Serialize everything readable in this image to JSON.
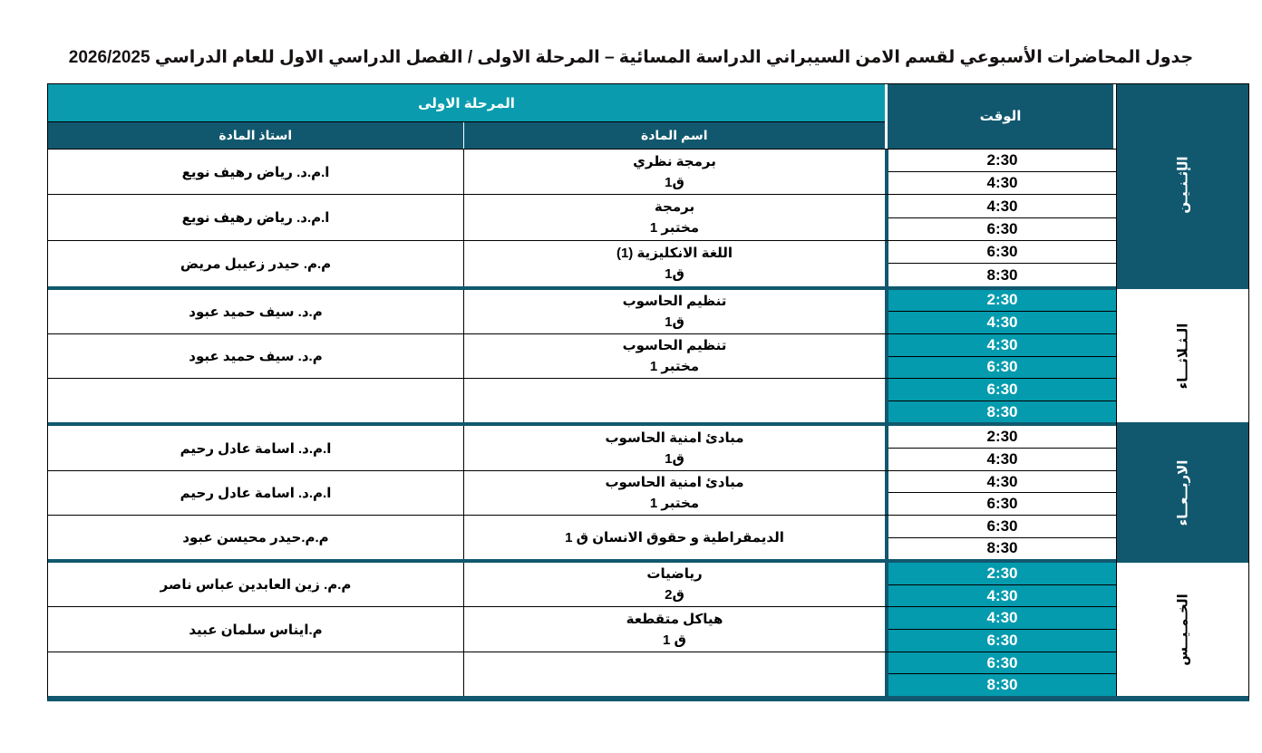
{
  "title": "جدول المحاضرات الأسبوعي لقسم الامن السيبراني الدراسة المسائية – المرحلة الاولى /  الفصل الدراسي الاول  للعام الدراسي 2026/2025",
  "header": {
    "stage_label": "المرحلة الاولى",
    "professor_col": "استاذ المادة",
    "subject_col": "اسم المادة",
    "time_col": "الوقت"
  },
  "days": [
    {
      "name": "الإثـنـيـن",
      "rows": [
        {
          "professor": "ا.م.د. رياض رهيف نويع",
          "subject_line1": "برمجة نظري",
          "subject_line2": "ق1",
          "times": [
            "2:30",
            "4:30"
          ]
        },
        {
          "professor": "ا.م.د. رياض رهيف نويع",
          "subject_line1": "برمجة",
          "subject_line2": "مختبر 1",
          "times": [
            "4:30",
            "6:30"
          ]
        },
        {
          "professor": "م.م. حيدر زعيبل مريض",
          "subject_line1": "اللغة الانكليزية (1)",
          "subject_line2": "ق1",
          "times": [
            "6:30",
            "8:30"
          ]
        }
      ]
    },
    {
      "name": "الـثـلاثـــاء",
      "rows": [
        {
          "professor": "م.د. سيف حميد عبود",
          "subject_line1": "تنظيم الحاسوب",
          "subject_line2": "ق1",
          "times": [
            "2:30",
            "4:30"
          ]
        },
        {
          "professor": "م.د. سيف حميد عبود",
          "subject_line1": "تنظيم الحاسوب",
          "subject_line2": "مختبر 1",
          "times": [
            "4:30",
            "6:30"
          ]
        },
        {
          "professor": "",
          "subject_line1": "",
          "subject_line2": "",
          "times": [
            "6:30",
            "8:30"
          ]
        }
      ]
    },
    {
      "name": "الاربــعــاء",
      "rows": [
        {
          "professor": "ا.م.د. اسامة عادل رحيم",
          "subject_line1": "مبادئ امنية الحاسوب",
          "subject_line2": "ق1",
          "times": [
            "2:30",
            "4:30"
          ]
        },
        {
          "professor": "ا.م.د. اسامة عادل رحيم",
          "subject_line1": "مبادئ امنية الحاسوب",
          "subject_line2": "مختبر 1",
          "times": [
            "4:30",
            "6:30"
          ]
        },
        {
          "professor": "م.م.حيدر محيسن عبود",
          "subject_line1": "الديمقراطية و حقوق الانسان ق 1",
          "subject_line2": "",
          "times": [
            "6:30",
            "8:30"
          ]
        }
      ]
    },
    {
      "name": "الخـمـيــس",
      "rows": [
        {
          "professor": "م.م. زين العابدين عباس ناصر",
          "subject_line1": "رياضيات",
          "subject_line2": "ق2",
          "times": [
            "2:30",
            "4:30"
          ]
        },
        {
          "professor": "م.ايناس سلمان عبيد",
          "subject_line1": "هياكل متقطعة",
          "subject_line2": "ق 1",
          "times": [
            "4:30",
            "6:30"
          ]
        },
        {
          "professor": "",
          "subject_line1": "",
          "subject_line2": "",
          "times": [
            "6:30",
            "8:30"
          ]
        }
      ]
    }
  ],
  "colors": {
    "teal_light": "#0a9cae",
    "teal_highlight": "#049bae",
    "teal_dark": "#11586f",
    "grid_line": "#000000"
  }
}
